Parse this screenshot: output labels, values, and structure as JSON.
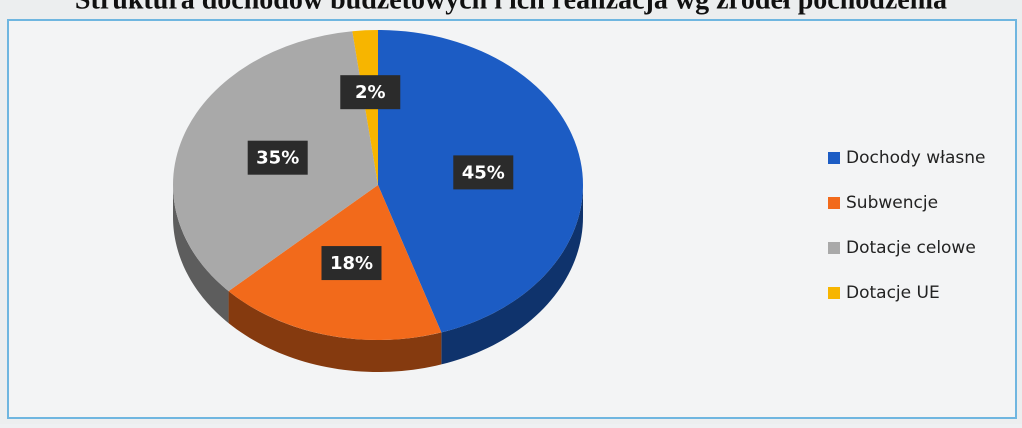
{
  "chart_data": {
    "type": "pie3d",
    "title": "Struktura dochodów budżetowych i ich realizacja wg źródeł pochodzenia",
    "categories": [
      "Dochody własne",
      "Subwencje",
      "Dotacje celowe",
      "Dotacje UE"
    ],
    "values": [
      45,
      18,
      35,
      2
    ],
    "value_labels": [
      "45%",
      "18%",
      "35%",
      "2%"
    ],
    "colors": [
      "#1c5cc4",
      "#f26a1b",
      "#a9a9a9",
      "#f7b500"
    ],
    "legend": "right"
  }
}
